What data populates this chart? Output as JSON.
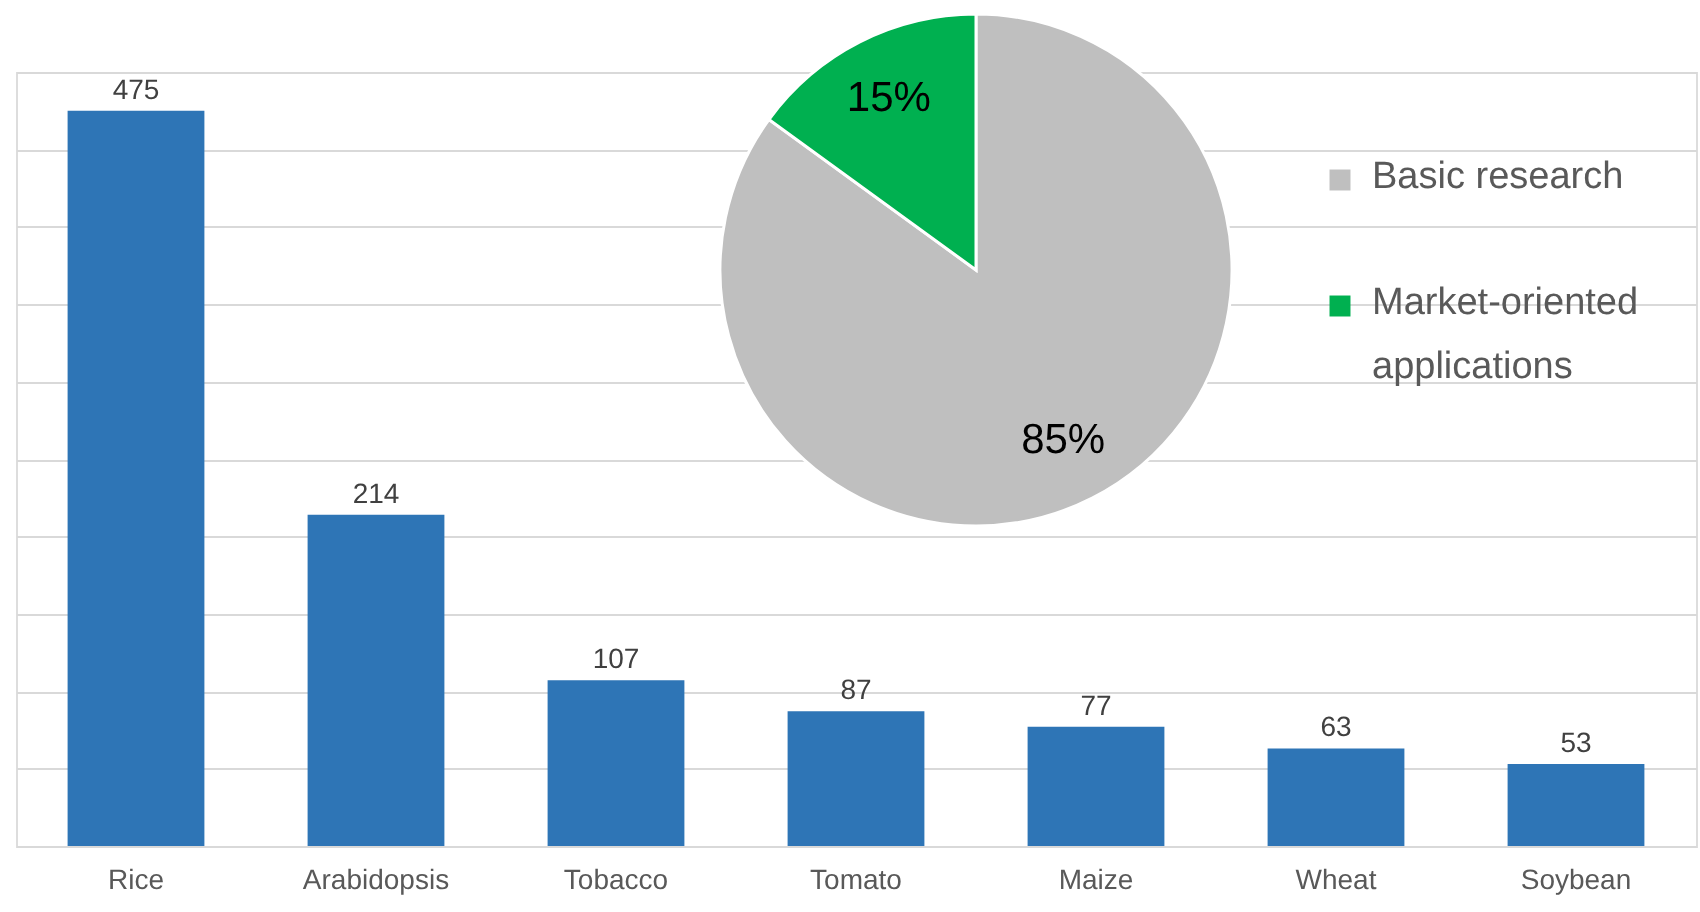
{
  "chart_data": [
    {
      "type": "bar",
      "categories": [
        "Rice",
        "Arabidopsis",
        "Tobacco",
        "Tomato",
        "Maize",
        "Wheat",
        "Soybean"
      ],
      "values": [
        475,
        214,
        107,
        87,
        77,
        63,
        53
      ],
      "color": "#2e75b6",
      "data_labels": true,
      "ylim": [
        0,
        500
      ],
      "yticks": [
        {
          "value": 0,
          "label": null
        },
        {
          "value": 50,
          "label": null
        },
        {
          "value": 100,
          "label": null
        },
        {
          "value": 150,
          "label": null
        },
        {
          "value": 200,
          "label": null
        },
        {
          "value": 250,
          "label": null
        },
        {
          "value": 300,
          "label": null
        },
        {
          "value": 350,
          "label": null
        },
        {
          "value": 400,
          "label": null
        },
        {
          "value": 450,
          "label": null
        },
        {
          "value": 500,
          "label": null
        }
      ],
      "grid": "y",
      "tick_labels": "x"
    },
    {
      "type": "pie",
      "categories": [
        "Basic research",
        "Market-oriented applications"
      ],
      "values": [
        85,
        15
      ],
      "colors": [
        "#bfbfbf",
        "#00b050"
      ],
      "value_labels": [
        "85%",
        "15%"
      ],
      "legend": "right"
    }
  ]
}
